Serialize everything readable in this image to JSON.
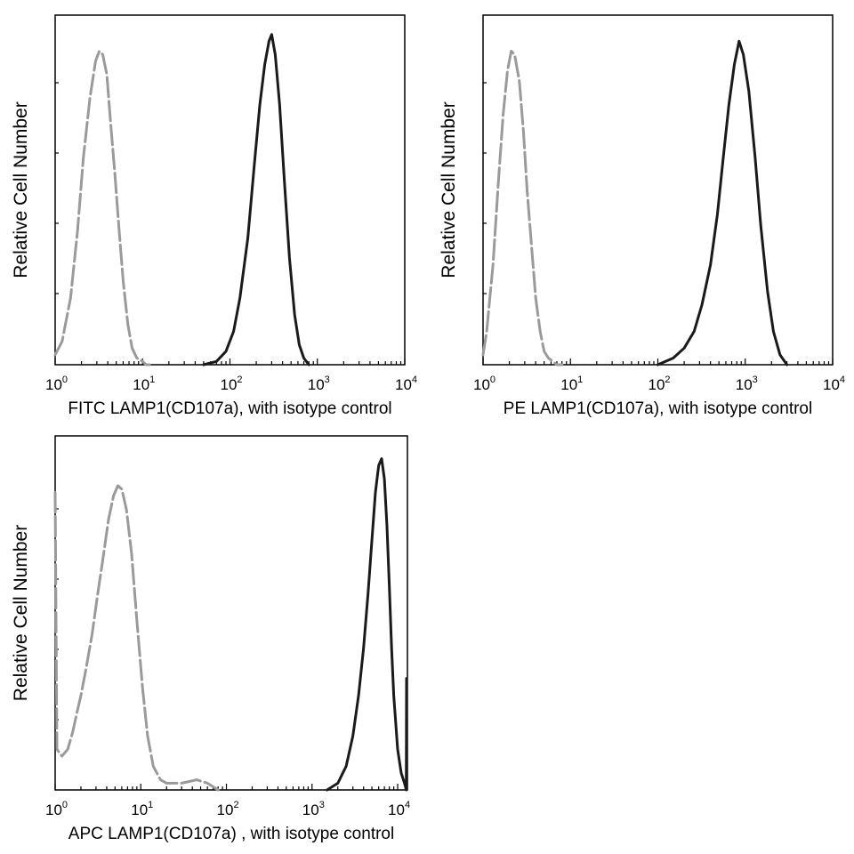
{
  "chart_data": [
    {
      "type": "line",
      "ylabel": "Relative Cell Number",
      "xlabel": "FITC LAMP1(CD107a), with isotype control",
      "xscale": "log",
      "xlim": [
        1,
        10000
      ],
      "ylim": [
        0,
        1
      ],
      "x_ticks": [
        {
          "base": "10",
          "exp": "0",
          "value": 1
        },
        {
          "base": "10",
          "exp": "1",
          "value": 10
        },
        {
          "base": "10",
          "exp": "2",
          "value": 100
        },
        {
          "base": "10",
          "exp": "3",
          "value": 1000
        },
        {
          "base": "10",
          "exp": "4",
          "value": 10000
        }
      ],
      "grid": false,
      "series": [
        {
          "color": "#9a9a9a",
          "dashed": true,
          "x": [
            1.0,
            1.2,
            1.5,
            1.8,
            2.1,
            2.5,
            2.9,
            3.2,
            3.5,
            3.9,
            4.3,
            4.8,
            5.4,
            6.0,
            6.8,
            7.6,
            8.6,
            10,
            11,
            12
          ],
          "y": [
            0.03,
            0.07,
            0.2,
            0.4,
            0.62,
            0.8,
            0.91,
            0.94,
            0.93,
            0.87,
            0.73,
            0.58,
            0.4,
            0.25,
            0.12,
            0.05,
            0.02,
            0.01,
            0.0,
            0.0
          ]
        },
        {
          "color": "#1a1a1a",
          "dashed": false,
          "x": [
            50,
            70,
            90,
            110,
            130,
            160,
            190,
            220,
            250,
            280,
            300,
            330,
            370,
            420,
            480,
            550,
            620,
            700,
            800
          ],
          "y": [
            0.0,
            0.01,
            0.04,
            0.1,
            0.2,
            0.38,
            0.6,
            0.78,
            0.9,
            0.97,
            0.99,
            0.93,
            0.78,
            0.55,
            0.32,
            0.15,
            0.06,
            0.02,
            0.0
          ]
        }
      ]
    },
    {
      "type": "line",
      "ylabel": "Relative Cell Number",
      "xlabel": "PE LAMP1(CD107a), with isotype control",
      "xscale": "log",
      "xlim": [
        1,
        10000
      ],
      "ylim": [
        0,
        1
      ],
      "x_ticks": [
        {
          "base": "10",
          "exp": "0",
          "value": 1
        },
        {
          "base": "10",
          "exp": "1",
          "value": 10
        },
        {
          "base": "10",
          "exp": "2",
          "value": 100
        },
        {
          "base": "10",
          "exp": "3",
          "value": 1000
        },
        {
          "base": "10",
          "exp": "4",
          "value": 10000
        }
      ],
      "grid": false,
      "series": [
        {
          "color": "#9a9a9a",
          "dashed": true,
          "x": [
            1.0,
            1.1,
            1.3,
            1.5,
            1.7,
            1.9,
            2.1,
            2.3,
            2.6,
            2.9,
            3.2,
            3.6,
            4.0,
            4.5,
            5.0,
            5.6,
            6.3,
            7.0,
            8.0
          ],
          "y": [
            0.03,
            0.1,
            0.3,
            0.55,
            0.75,
            0.88,
            0.94,
            0.93,
            0.85,
            0.7,
            0.52,
            0.35,
            0.2,
            0.1,
            0.04,
            0.02,
            0.01,
            0.0,
            0.0
          ]
        },
        {
          "color": "#1a1a1a",
          "dashed": false,
          "x": [
            100,
            150,
            200,
            260,
            320,
            400,
            480,
            560,
            650,
            750,
            850,
            950,
            1100,
            1300,
            1500,
            1800,
            2100,
            2500,
            3000
          ],
          "y": [
            0.0,
            0.02,
            0.05,
            0.1,
            0.18,
            0.3,
            0.45,
            0.62,
            0.78,
            0.9,
            0.97,
            0.93,
            0.82,
            0.62,
            0.42,
            0.22,
            0.1,
            0.03,
            0.0
          ]
        }
      ]
    },
    {
      "type": "line",
      "ylabel": "Relative Cell Number",
      "xlabel": "APC LAMP1(CD107a) , with isotype control",
      "xscale": "log",
      "xlim": [
        1,
        13000
      ],
      "ylim": [
        0,
        1
      ],
      "x_ticks": [
        {
          "base": "10",
          "exp": "0",
          "value": 1
        },
        {
          "base": "10",
          "exp": "1",
          "value": 10
        },
        {
          "base": "10",
          "exp": "2",
          "value": 100
        },
        {
          "base": "10",
          "exp": "3",
          "value": 1000
        },
        {
          "base": "10",
          "exp": "4",
          "value": 10000
        }
      ],
      "grid": false,
      "series": [
        {
          "color": "#9a9a9a",
          "dashed": true,
          "x": [
            1.0,
            1.05,
            1.2,
            1.4,
            1.6,
            1.8,
            2.0,
            2.3,
            2.7,
            3.1,
            3.6,
            4.2,
            4.8,
            5.4,
            6.0,
            6.8,
            7.8,
            9.0,
            10.5,
            12,
            14,
            17,
            20,
            30,
            45,
            60,
            80
          ],
          "y": [
            0.88,
            0.12,
            0.1,
            0.12,
            0.17,
            0.23,
            0.28,
            0.36,
            0.46,
            0.57,
            0.68,
            0.8,
            0.87,
            0.9,
            0.89,
            0.83,
            0.7,
            0.5,
            0.3,
            0.16,
            0.07,
            0.03,
            0.02,
            0.02,
            0.03,
            0.02,
            0.0
          ]
        },
        {
          "color": "#1a1a1a",
          "dashed": false,
          "x": [
            1500,
            2000,
            2500,
            3000,
            3500,
            4000,
            4500,
            5000,
            5500,
            6000,
            6500,
            7000,
            7500,
            8000,
            8500,
            9000,
            10000,
            11000,
            12000,
            12600,
            12700
          ],
          "y": [
            0.0,
            0.02,
            0.07,
            0.16,
            0.28,
            0.42,
            0.58,
            0.74,
            0.88,
            0.96,
            0.98,
            0.92,
            0.78,
            0.6,
            0.42,
            0.28,
            0.12,
            0.05,
            0.02,
            0.0,
            0.33
          ]
        }
      ]
    }
  ]
}
